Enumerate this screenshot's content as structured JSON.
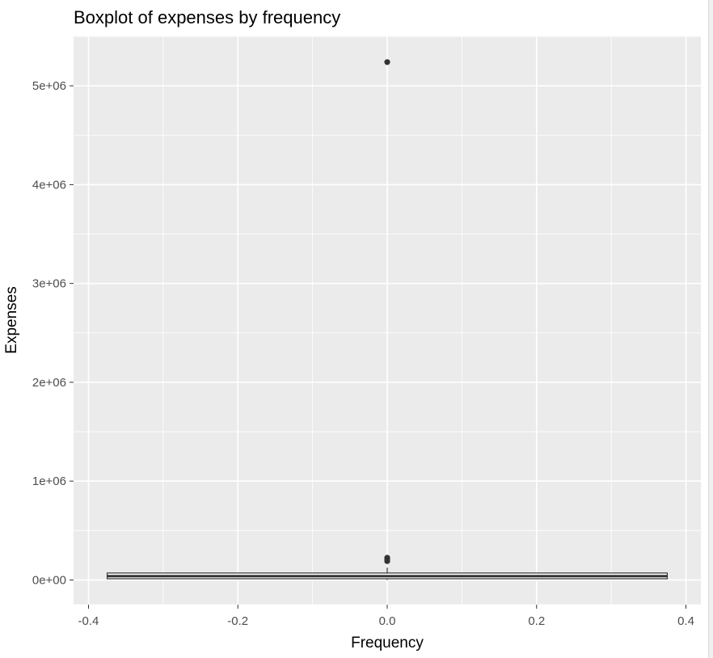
{
  "chart_data": {
    "type": "boxplot",
    "title": "Boxplot of expenses by frequency",
    "xlabel": "Frequency",
    "ylabel": "Expenses",
    "xlim": [
      -0.42,
      0.42
    ],
    "ylim": [
      -250000,
      5500000
    ],
    "x_ticks": [
      -0.4,
      -0.2,
      0.0,
      0.2,
      0.4
    ],
    "x_tick_labels": [
      "-0.4",
      "-0.2",
      "0.0",
      "0.2",
      "0.4"
    ],
    "y_ticks": [
      0,
      1000000,
      2000000,
      3000000,
      4000000,
      5000000
    ],
    "y_tick_labels": [
      "0e+00",
      "1e+06",
      "2e+06",
      "3e+06",
      "4e+06",
      "5e+06"
    ],
    "grid": true,
    "box": {
      "x_center": 0.0,
      "x_min": -0.375,
      "x_max": 0.375,
      "lower_whisker": 0,
      "q1": 12000,
      "median": 38000,
      "q3": 70000,
      "upper_whisker": 125000
    },
    "outliers": [
      {
        "x": 0.0,
        "y": 5240000
      },
      {
        "x": 0.0,
        "y": 225000
      },
      {
        "x": 0.0,
        "y": 210000
      },
      {
        "x": 0.0,
        "y": 190000
      }
    ],
    "colors": {
      "panel": "#ebebeb",
      "grid": "#ffffff",
      "box_line": "#333333",
      "box_fill": "#ffffff",
      "points": "#333333"
    }
  }
}
